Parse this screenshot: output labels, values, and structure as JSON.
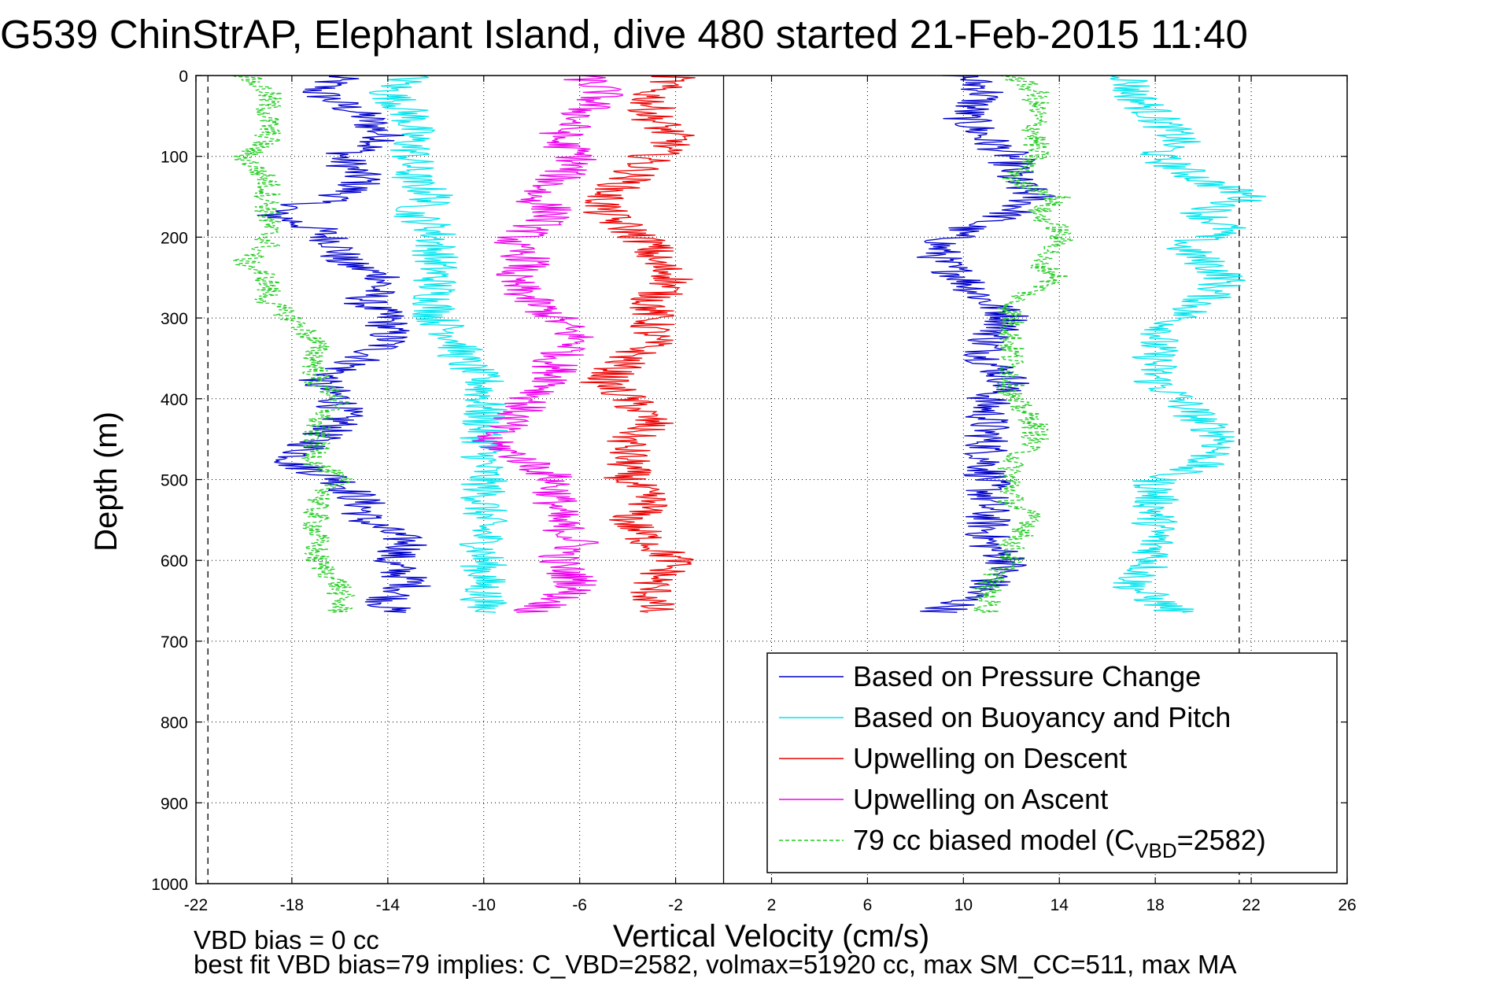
{
  "chart_data": {
    "type": "line",
    "title": "G539 ChinStrAP, Elephant Island, dive 480 started 21-Feb-2015 11:40",
    "xlabel": "Vertical Velocity (cm/s)",
    "ylabel": "Depth (m)",
    "xlim": [
      -22,
      26
    ],
    "ylim": [
      0,
      1000
    ],
    "y_reversed": true,
    "xticks": [
      -22,
      -18,
      -14,
      -10,
      -6,
      -2,
      2,
      6,
      10,
      14,
      18,
      22,
      26
    ],
    "yticks": [
      0,
      100,
      200,
      300,
      400,
      500,
      600,
      700,
      800,
      900,
      1000
    ],
    "grid": true,
    "legend_position": "bottom-right",
    "reference_lines": {
      "vertical_solid_x": 0,
      "vertical_dashed_x": [
        -21.5,
        21.5
      ]
    },
    "series": [
      {
        "name": "Based on Pressure Change",
        "color": "#0000cc",
        "descent": {
          "depth": [
            0,
            20,
            50,
            80,
            100,
            130,
            150,
            170,
            190,
            210,
            230,
            250,
            280,
            300,
            330,
            350,
            380,
            400,
            430,
            450,
            480,
            500,
            530,
            550,
            580,
            600,
            630,
            650,
            665
          ],
          "velocity": [
            -16,
            -17,
            -15,
            -14,
            -16,
            -15,
            -16,
            -19,
            -17,
            -16,
            -16,
            -14,
            -15,
            -14,
            -14,
            -15,
            -17,
            -16,
            -16,
            -17,
            -18,
            -16,
            -15,
            -15,
            -13,
            -14,
            -13,
            -14,
            -14
          ]
        },
        "ascent": {
          "depth": [
            0,
            20,
            50,
            80,
            100,
            130,
            150,
            170,
            190,
            210,
            230,
            250,
            280,
            300,
            330,
            350,
            380,
            400,
            430,
            450,
            480,
            500,
            530,
            550,
            580,
            600,
            630,
            650,
            665
          ],
          "velocity": [
            10,
            11,
            10,
            11,
            12,
            12,
            13,
            12,
            10,
            9,
            9,
            10,
            11,
            12,
            11,
            11,
            12,
            11,
            11,
            11,
            11,
            11,
            11,
            11,
            11,
            12,
            11,
            10,
            9
          ]
        }
      },
      {
        "name": "Based on Buoyancy and Pitch",
        "color": "#00e5ee",
        "descent": {
          "depth": [
            0,
            20,
            50,
            80,
            100,
            130,
            150,
            170,
            190,
            210,
            230,
            250,
            280,
            300,
            330,
            350,
            380,
            400,
            430,
            450,
            480,
            500,
            530,
            550,
            580,
            600,
            630,
            650,
            665
          ],
          "velocity": [
            -13,
            -14,
            -13,
            -13,
            -13,
            -13,
            -12,
            -13,
            -12,
            -12,
            -12,
            -12,
            -12,
            -12,
            -11,
            -11,
            -10,
            -10,
            -10,
            -10,
            -10,
            -10,
            -10,
            -10,
            -10,
            -10,
            -10,
            -10,
            -10
          ]
        },
        "ascent": {
          "depth": [
            0,
            20,
            50,
            80,
            100,
            130,
            150,
            170,
            190,
            210,
            230,
            250,
            280,
            300,
            330,
            350,
            380,
            400,
            430,
            450,
            480,
            500,
            530,
            550,
            580,
            600,
            630,
            650,
            665
          ],
          "velocity": [
            17,
            17,
            18,
            19,
            18,
            20,
            22,
            20,
            21,
            19,
            20,
            21,
            20,
            19,
            18,
            18,
            18,
            19,
            20,
            21,
            20,
            18,
            18,
            18,
            18,
            18,
            17,
            18,
            19
          ]
        }
      },
      {
        "name": "Upwelling on Descent",
        "color": "#ee0000",
        "depth": [
          0,
          20,
          50,
          80,
          100,
          130,
          150,
          170,
          190,
          210,
          230,
          250,
          280,
          300,
          330,
          350,
          380,
          400,
          430,
          450,
          480,
          500,
          530,
          550,
          580,
          600,
          630,
          650,
          665
        ],
        "velocity": [
          -2,
          -3,
          -3,
          -2,
          -3,
          -4,
          -5,
          -5,
          -4,
          -3,
          -3,
          -2,
          -3,
          -3,
          -3,
          -4,
          -5,
          -4,
          -3,
          -4,
          -4,
          -4,
          -3,
          -4,
          -3,
          -2,
          -3,
          -3,
          -3
        ]
      },
      {
        "name": "Upwelling on Ascent",
        "color": "#ee00ee",
        "depth": [
          0,
          20,
          50,
          80,
          100,
          130,
          150,
          170,
          190,
          210,
          230,
          250,
          280,
          300,
          330,
          350,
          380,
          400,
          430,
          450,
          480,
          500,
          530,
          550,
          580,
          600,
          630,
          650,
          665
        ],
        "velocity": [
          -6,
          -5,
          -6,
          -7,
          -6,
          -7,
          -8,
          -7,
          -8,
          -9,
          -8,
          -9,
          -8,
          -7,
          -6,
          -7,
          -7,
          -8,
          -9,
          -10,
          -8,
          -7,
          -7,
          -7,
          -6,
          -7,
          -6,
          -7,
          -8
        ]
      },
      {
        "name": "79 cc biased model (C_VBD=2582)",
        "color": "#22cc22",
        "dashed": true,
        "descent": {
          "depth": [
            0,
            20,
            50,
            80,
            100,
            130,
            150,
            170,
            190,
            210,
            230,
            250,
            280,
            300,
            330,
            350,
            380,
            400,
            430,
            450,
            480,
            500,
            530,
            550,
            580,
            600,
            630,
            650,
            665
          ],
          "velocity": [
            -20,
            -19,
            -19,
            -19,
            -20,
            -19,
            -19,
            -19,
            -19,
            -19,
            -20,
            -19,
            -19,
            -18,
            -17,
            -17,
            -17,
            -16,
            -17,
            -17,
            -17,
            -16,
            -17,
            -17,
            -17,
            -17,
            -16,
            -16,
            -16
          ]
        },
        "ascent": {
          "depth": [
            0,
            20,
            50,
            80,
            100,
            130,
            150,
            170,
            190,
            210,
            230,
            250,
            280,
            300,
            330,
            350,
            380,
            400,
            430,
            450,
            480,
            500,
            530,
            550,
            580,
            600,
            630,
            650,
            665
          ],
          "velocity": [
            12,
            13,
            13,
            13,
            13,
            12,
            14,
            13,
            14,
            14,
            13,
            14,
            12,
            12,
            12,
            12,
            12,
            12,
            13,
            13,
            12,
            12,
            12,
            13,
            12,
            12,
            11,
            11,
            11
          ]
        }
      }
    ],
    "legend": [
      {
        "label": "Based on Pressure Change",
        "color": "#0000cc",
        "dashed": false
      },
      {
        "label": "Based on Buoyancy and Pitch",
        "color": "#00e5ee",
        "dashed": false
      },
      {
        "label": "Upwelling on Descent",
        "color": "#ee0000",
        "dashed": false
      },
      {
        "label": "Upwelling on Ascent",
        "color": "#ee00ee",
        "dashed": false
      },
      {
        "label": "79 cc biased model (C",
        "subscript": "VBD",
        "suffix": "=2582)",
        "color": "#22cc22",
        "dashed": true
      }
    ],
    "footer": {
      "line1": "VBD bias = 0 cc",
      "line2": "best fit VBD bias=79 implies: C_VBD=2582, volmax=51920 cc, max SM_CC=511, max MA"
    }
  }
}
